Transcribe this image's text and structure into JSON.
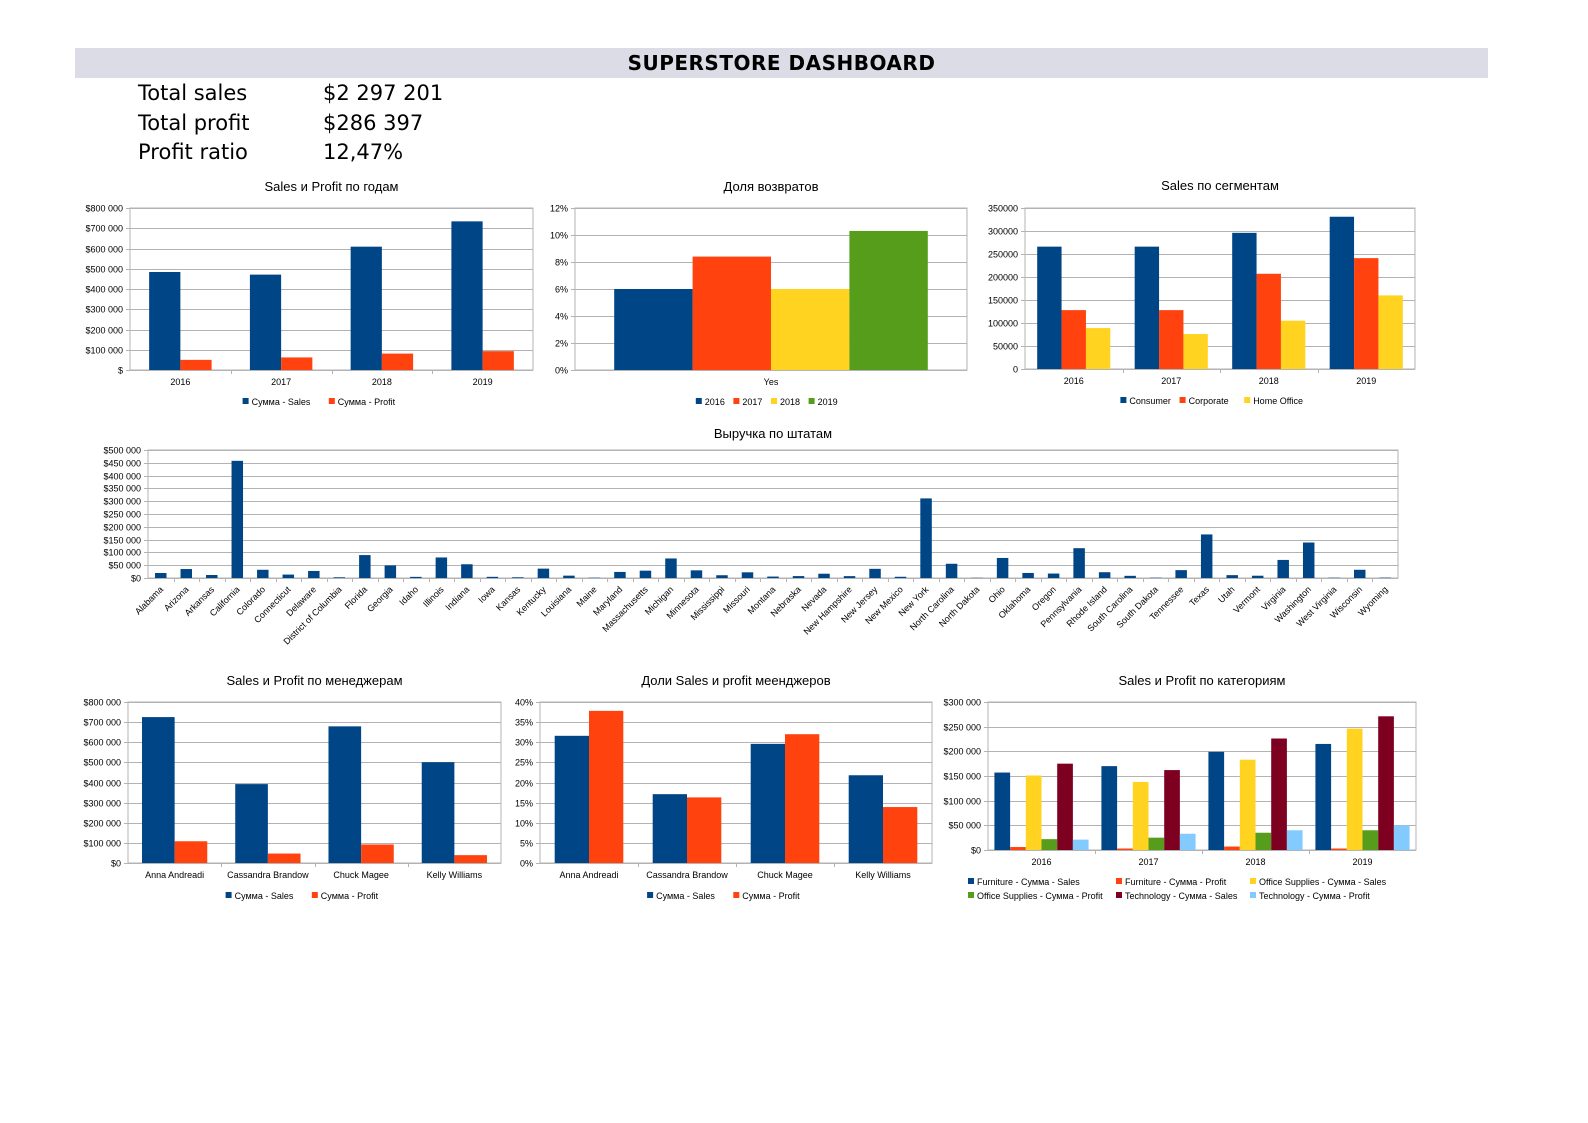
{
  "dashboard": {
    "title": "SUPERSTORE DASHBOARD",
    "kpis": [
      {
        "label": "Total sales",
        "value": "$2 297 201"
      },
      {
        "label": "Total profit",
        "value": "$286 397"
      },
      {
        "label": "Profit ratio",
        "value": "12,47%"
      }
    ]
  },
  "colors": {
    "navy": "#004586",
    "orange": "#ff420e",
    "yellow": "#ffd320",
    "green": "#579d1c",
    "maroon": "#7e0021",
    "lightblue": "#83caff",
    "grid": "#b3b3b3"
  },
  "chart_data": [
    {
      "id": "c1",
      "type": "bar",
      "title": "Sales и Profit по годам",
      "categories": [
        "2016",
        "2017",
        "2018",
        "2019"
      ],
      "series": [
        {
          "name": "Сумма - Sales",
          "color": "navy",
          "values": [
            484000,
            471000,
            609000,
            734000
          ]
        },
        {
          "name": "Сумма - Profit",
          "color": "orange",
          "values": [
            50000,
            62000,
            81000,
            93000
          ]
        }
      ],
      "ylim": [
        0,
        800000
      ],
      "yticks": [
        0,
        100000,
        200000,
        300000,
        400000,
        500000,
        600000,
        700000,
        800000
      ],
      "ytick_labels": [
        "$",
        "$100 000",
        "$200 000",
        "$300 000",
        "$400 000",
        "$500 000",
        "$600 000",
        "$700 000",
        "$800 000"
      ],
      "grid": true,
      "legend": "bottom"
    },
    {
      "id": "c2",
      "type": "bar",
      "title": "Доля возвратов",
      "categories": [
        "Yes"
      ],
      "series": [
        {
          "name": "2016",
          "color": "navy",
          "values": [
            0.06
          ]
        },
        {
          "name": "2017",
          "color": "orange",
          "values": [
            0.084
          ]
        },
        {
          "name": "2018",
          "color": "yellow",
          "values": [
            0.06
          ]
        },
        {
          "name": "2019",
          "color": "green",
          "values": [
            0.103
          ]
        }
      ],
      "ylim": [
        0,
        0.12
      ],
      "yticks": [
        0,
        0.02,
        0.04,
        0.06,
        0.08,
        0.1,
        0.12
      ],
      "ytick_labels": [
        "0%",
        "2%",
        "4%",
        "6%",
        "8%",
        "10%",
        "12%"
      ],
      "grid": true,
      "legend": "bottom"
    },
    {
      "id": "c3",
      "type": "bar",
      "title": "Sales по сегментам",
      "categories": [
        "2016",
        "2017",
        "2018",
        "2019"
      ],
      "series": [
        {
          "name": "Consumer",
          "color": "navy",
          "values": [
            266000,
            266000,
            296000,
            331000
          ]
        },
        {
          "name": "Corporate",
          "color": "orange",
          "values": [
            128000,
            128000,
            207000,
            241000
          ]
        },
        {
          "name": "Home Office",
          "color": "yellow",
          "values": [
            89000,
            76000,
            105000,
            160000
          ]
        }
      ],
      "ylim": [
        0,
        350000
      ],
      "yticks": [
        0,
        50000,
        100000,
        150000,
        200000,
        250000,
        300000,
        350000
      ],
      "ytick_labels": [
        "0",
        "50000",
        "100000",
        "150000",
        "200000",
        "250000",
        "300000",
        "350000"
      ],
      "grid": true,
      "legend": "bottom"
    },
    {
      "id": "c4",
      "type": "bar",
      "title": "Выручка по штатам",
      "categories": [
        "Alabama",
        "Arizona",
        "Arkansas",
        "California",
        "Colorado",
        "Connecticut",
        "Delaware",
        "District of Columbia",
        "Florida",
        "Georgia",
        "Idaho",
        "Illinois",
        "Indiana",
        "Iowa",
        "Kansas",
        "Kentucky",
        "Louisiana",
        "Maine",
        "Maryland",
        "Massachusetts",
        "Michigan",
        "Minnesota",
        "Mississippi",
        "Missouri",
        "Montana",
        "Nebraska",
        "Nevada",
        "New Hampshire",
        "New Jersey",
        "New Mexico",
        "New York",
        "North Carolina",
        "North Dakota",
        "Ohio",
        "Oklahoma",
        "Oregon",
        "Pennsylvania",
        "Rhode Island",
        "South Carolina",
        "South Dakota",
        "Tennessee",
        "Texas",
        "Utah",
        "Vermont",
        "Virginia",
        "Washington",
        "West Virginia",
        "Wisconsin",
        "Wyoming"
      ],
      "series": [
        {
          "name": "",
          "color": "navy",
          "values": [
            19500,
            35000,
            11700,
            457700,
            32100,
            13400,
            27500,
            2900,
            89500,
            49100,
            4400,
            80200,
            53600,
            4600,
            2900,
            36600,
            9200,
            1300,
            23700,
            28600,
            76300,
            29900,
            10800,
            22200,
            5600,
            7500,
            16700,
            7300,
            35800,
            4800,
            310900,
            55600,
            900,
            78300,
            19700,
            17400,
            116500,
            22600,
            8500,
            1300,
            30700,
            170200,
            11200,
            8900,
            70600,
            138600,
            1200,
            32100,
            1600
          ]
        }
      ],
      "ylim": [
        0,
        500000
      ],
      "yticks": [
        0,
        50000,
        100000,
        150000,
        200000,
        250000,
        300000,
        350000,
        400000,
        450000,
        500000
      ],
      "ytick_labels": [
        "$0",
        "$50 000",
        "$100 000",
        "$150 000",
        "$200 000",
        "$250 000",
        "$300 000",
        "$350 000",
        "$400 000",
        "$450 000",
        "$500 000"
      ],
      "grid": true,
      "legend": "none"
    },
    {
      "id": "c5",
      "type": "bar",
      "title": "Sales и Profit по менеджерам",
      "categories": [
        "Anna Andreadi",
        "Cassandra Brandow",
        "Chuck Magee",
        "Kelly Williams"
      ],
      "series": [
        {
          "name": "Сумма - Sales",
          "color": "navy",
          "values": [
            725000,
            392000,
            679000,
            501000
          ]
        },
        {
          "name": "Сумма - Profit",
          "color": "orange",
          "values": [
            108000,
            47000,
            92000,
            39000
          ]
        }
      ],
      "ylim": [
        0,
        800000
      ],
      "yticks": [
        0,
        100000,
        200000,
        300000,
        400000,
        500000,
        600000,
        700000,
        800000
      ],
      "ytick_labels": [
        "$0",
        "$100 000",
        "$200 000",
        "$300 000",
        "$400 000",
        "$500 000",
        "$600 000",
        "$700 000",
        "$800 000"
      ],
      "grid": true,
      "legend": "bottom"
    },
    {
      "id": "c6",
      "type": "bar",
      "title": "Доли Sales и profit меенджеров",
      "categories": [
        "Anna Andreadi",
        "Cassandra Brandow",
        "Chuck Magee",
        "Kelly Williams"
      ],
      "series": [
        {
          "name": "Сумма - Sales",
          "color": "navy",
          "values": [
            0.316,
            0.171,
            0.296,
            0.218
          ]
        },
        {
          "name": "Сумма - Profit",
          "color": "orange",
          "values": [
            0.378,
            0.163,
            0.32,
            0.139
          ]
        }
      ],
      "ylim": [
        0,
        0.4
      ],
      "yticks": [
        0,
        0.05,
        0.1,
        0.15,
        0.2,
        0.25,
        0.3,
        0.35,
        0.4
      ],
      "ytick_labels": [
        "0%",
        "5%",
        "10%",
        "15%",
        "20%",
        "25%",
        "30%",
        "35%",
        "40%"
      ],
      "grid": true,
      "legend": "bottom"
    },
    {
      "id": "c7",
      "type": "bar",
      "title": "Sales и Profit по категориям",
      "categories": [
        "2016",
        "2017",
        "2018",
        "2019"
      ],
      "series": [
        {
          "name": "Furniture - Сумма - Sales",
          "color": "navy",
          "values": [
            157000,
            170000,
            199000,
            215000
          ]
        },
        {
          "name": "Furniture - Сумма - Profit",
          "color": "orange",
          "values": [
            6000,
            3000,
            7000,
            3000
          ]
        },
        {
          "name": "Office Supplies - Сумма - Sales",
          "color": "yellow",
          "values": [
            151000,
            138000,
            183000,
            246000
          ]
        },
        {
          "name": "Office Supplies - Сумма - Profit",
          "color": "green",
          "values": [
            22000,
            25000,
            35000,
            40000
          ]
        },
        {
          "name": "Technology - Сумма - Sales",
          "color": "maroon",
          "values": [
            175000,
            162000,
            226000,
            271000
          ]
        },
        {
          "name": "Technology - Сумма - Profit",
          "color": "lightblue",
          "values": [
            21000,
            33000,
            40000,
            50000
          ]
        }
      ],
      "ylim": [
        0,
        300000
      ],
      "yticks": [
        0,
        50000,
        100000,
        150000,
        200000,
        250000,
        300000
      ],
      "ytick_labels": [
        "$0",
        "$50 000",
        "$100 000",
        "$150 000",
        "$200 000",
        "$250 000",
        "$300 000"
      ],
      "grid": true,
      "legend": "bottom"
    }
  ]
}
